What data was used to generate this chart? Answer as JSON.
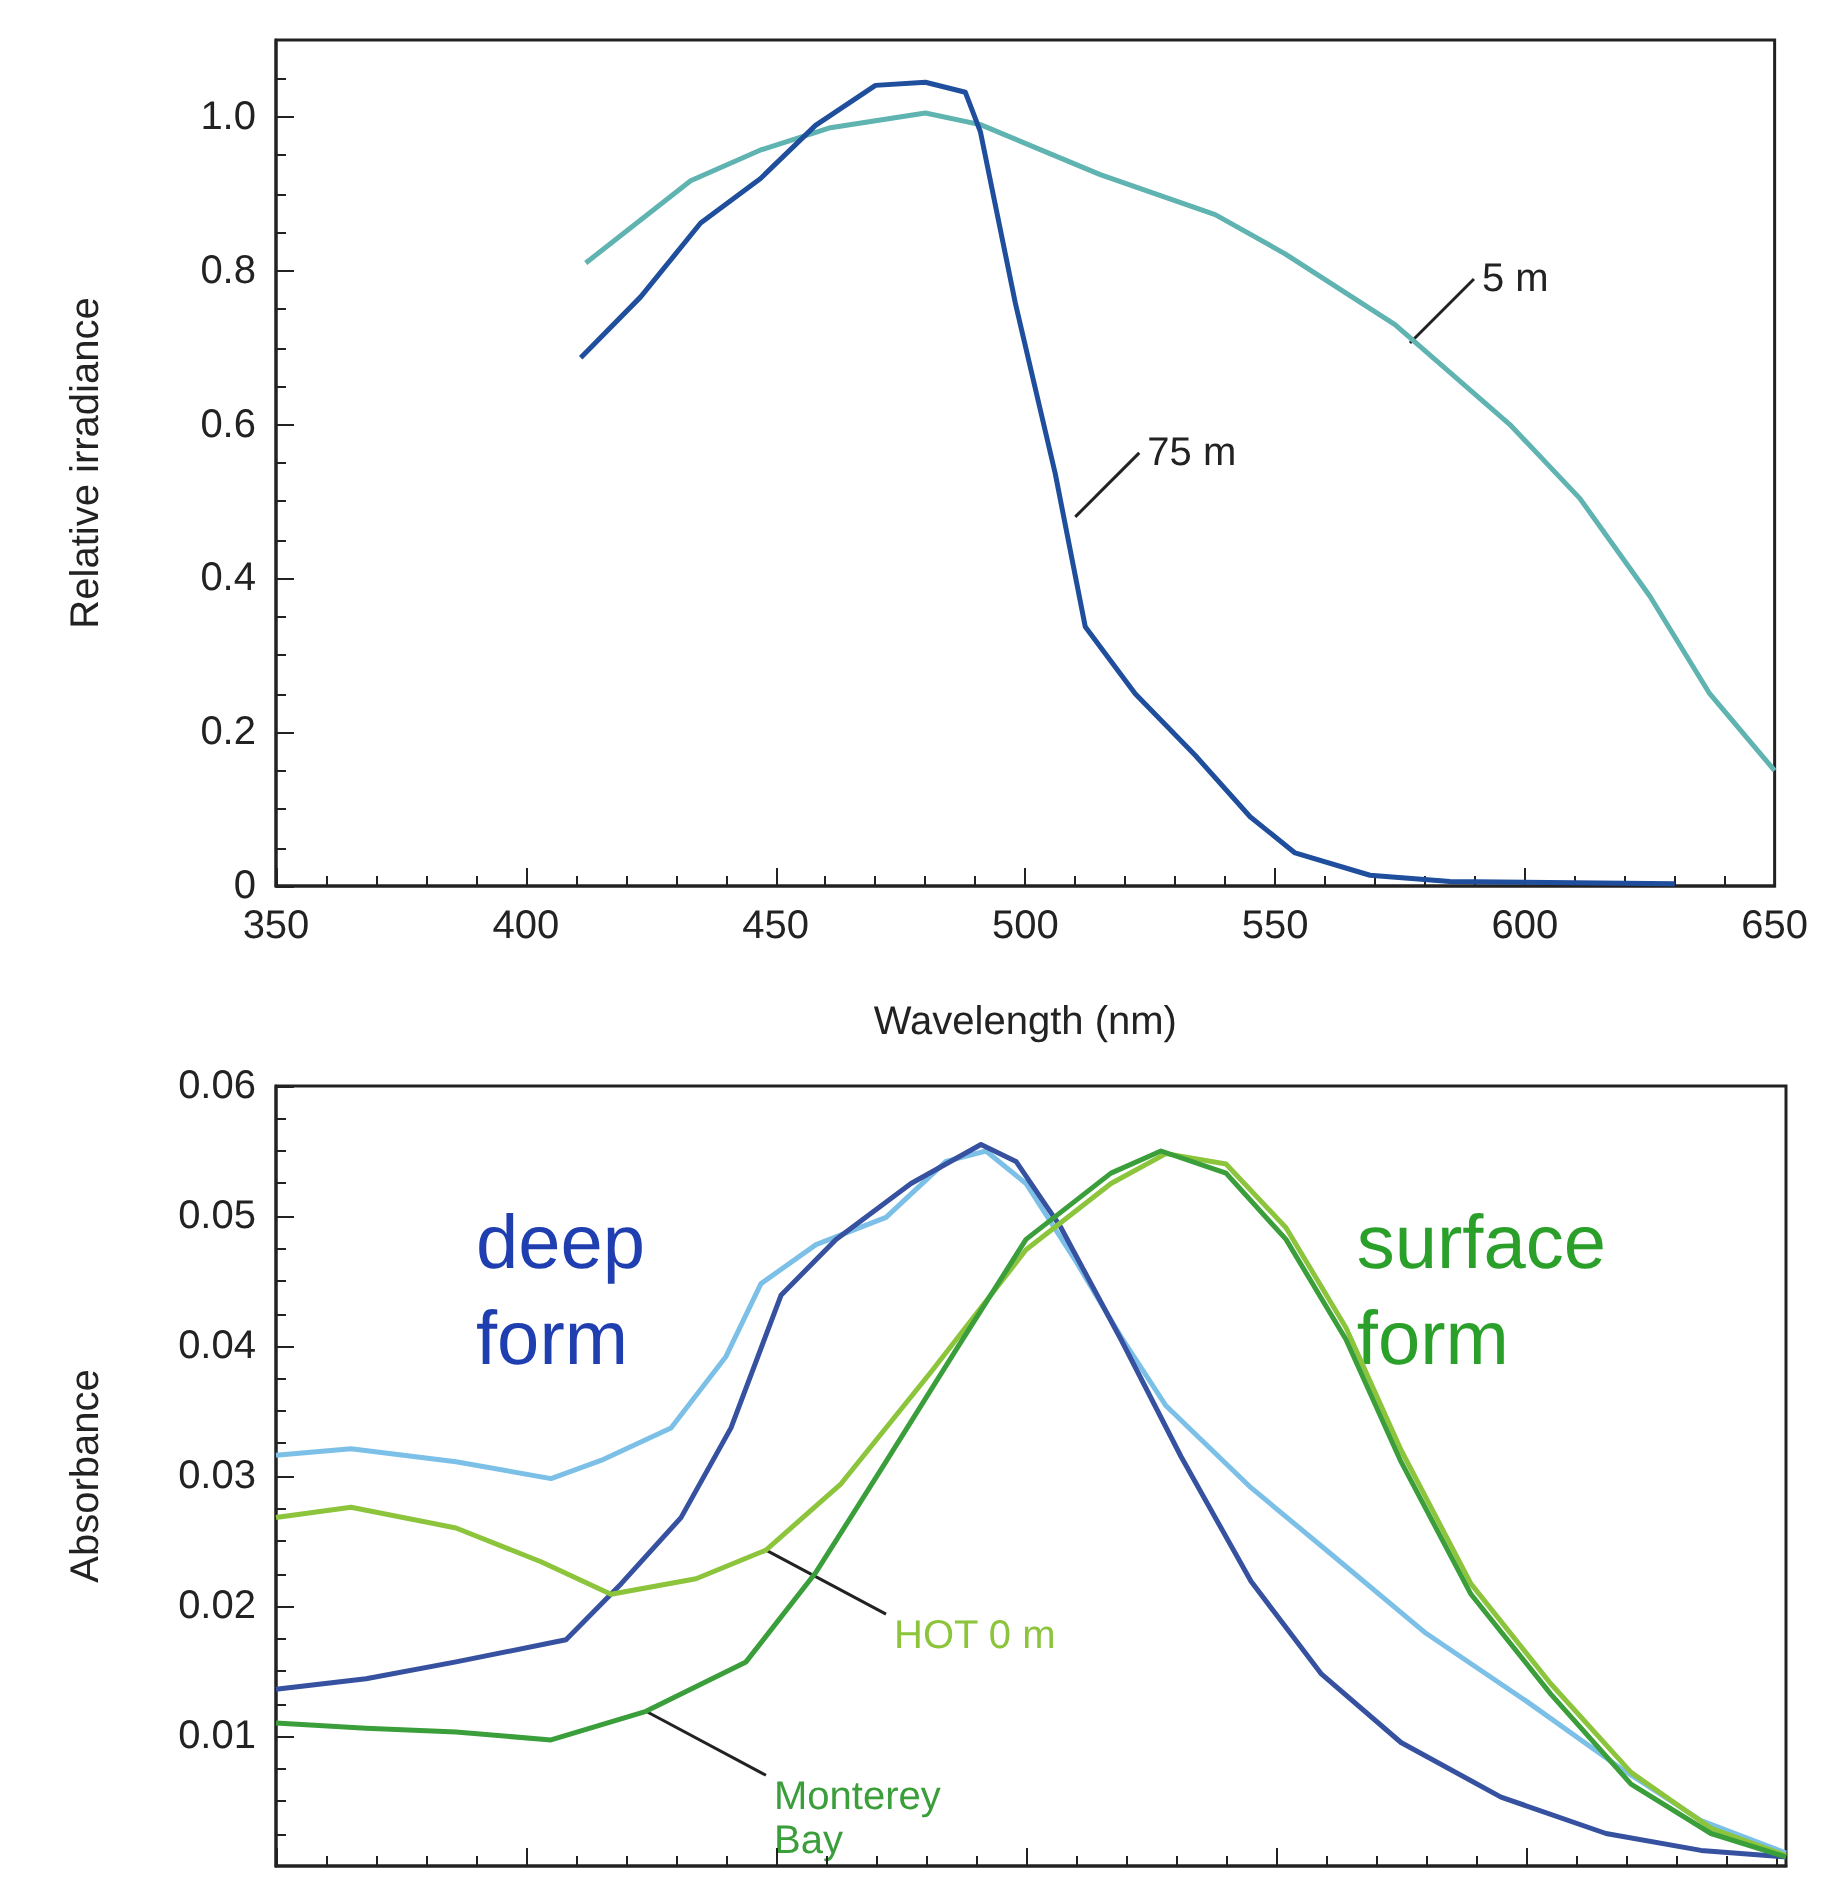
{
  "chart_data": [
    {
      "type": "line",
      "ylabel": "Relative irradiance",
      "xlabel": "Wavelength (nm)",
      "xlim": [
        350,
        650
      ],
      "xticks": [
        350,
        400,
        450,
        500,
        550,
        600,
        650
      ],
      "ylim": [
        0,
        1.1
      ],
      "yticks": [
        0,
        0.2,
        0.4,
        0.6,
        0.8,
        {
          "value": 1,
          "label": "1.0"
        }
      ],
      "grid": false,
      "legend": false,
      "marker": "none",
      "line_style": "solid",
      "series": [
        {
          "color": "#5fb3b0",
          "x": [
            412,
            433,
            447,
            461,
            480,
            491,
            515,
            538,
            552,
            574,
            597,
            611,
            625,
            637,
            650
          ],
          "values": [
            0.81,
            0.917,
            0.957,
            0.986,
            1.005,
            0.99,
            0.925,
            0.873,
            0.822,
            0.73,
            0.6,
            0.504,
            0.377,
            0.25,
            0.15
          ]
        },
        {
          "color": "#1f4e9c",
          "x": [
            411,
            423,
            435,
            447,
            458,
            470,
            480,
            488,
            491,
            498,
            506,
            512,
            522,
            534,
            545,
            554,
            569,
            585,
            630
          ],
          "values": [
            0.687,
            0.766,
            0.862,
            0.92,
            0.989,
            1.041,
            1.045,
            1.032,
            0.981,
            0.758,
            0.536,
            0.337,
            0.25,
            0.17,
            0.09,
            0.043,
            0.014,
            0.006,
            0.003
          ]
        }
      ],
      "annotations": [
        {
          "text": "5 m",
          "x": 577,
          "y": 0.706
        },
        {
          "text": "75 m",
          "x": 510,
          "y": 0.48
        }
      ]
    },
    {
      "type": "line",
      "ylabel": "Absorbance",
      "xlim": [
        350,
        652
      ],
      "xticks": [
        350,
        400,
        450,
        500,
        550,
        600,
        650
      ],
      "ylim": [
        0,
        0.06
      ],
      "yticks": [
        0.01,
        0.02,
        0.03,
        0.04,
        0.05,
        0.06
      ],
      "tick_labels": "y",
      "grid": false,
      "legend": false,
      "marker": "none",
      "line_style": "solid",
      "series": [
        {
          "color": "#7cc0e8",
          "x": [
            350,
            365,
            386,
            405,
            415,
            429,
            440,
            447,
            458,
            472,
            484,
            492,
            500,
            510,
            519,
            528,
            545,
            561,
            580,
            600,
            619,
            635,
            652
          ],
          "values": [
            0.0316,
            0.0321,
            0.0311,
            0.0298,
            0.0312,
            0.0337,
            0.0392,
            0.0448,
            0.0478,
            0.0499,
            0.0542,
            0.055,
            0.0525,
            0.0465,
            0.0407,
            0.0354,
            0.0291,
            0.024,
            0.0179,
            0.0127,
            0.0075,
            0.0035,
            0.001
          ]
        },
        {
          "color": "#35519f",
          "x": [
            350,
            368,
            386,
            408,
            419,
            431,
            441,
            451,
            462,
            477,
            491,
            498,
            507,
            519,
            531,
            545,
            559,
            575,
            595,
            616,
            635,
            652
          ],
          "values": [
            0.0136,
            0.0144,
            0.0157,
            0.0174,
            0.0217,
            0.0268,
            0.0337,
            0.0439,
            0.0482,
            0.0525,
            0.0555,
            0.0542,
            0.0491,
            0.0405,
            0.0315,
            0.0219,
            0.0148,
            0.0095,
            0.0053,
            0.0025,
            0.0012,
            0.0007
          ]
        },
        {
          "name": "HOT 0 m",
          "color": "#8cc43c",
          "x": [
            350,
            365,
            386,
            403,
            417,
            434,
            448,
            463,
            481,
            500,
            517,
            528,
            540,
            552,
            564,
            575,
            589,
            605,
            621,
            637,
            652
          ],
          "values": [
            0.0268,
            0.0276,
            0.026,
            0.0234,
            0.0209,
            0.0221,
            0.0243,
            0.0294,
            0.038,
            0.0474,
            0.0525,
            0.0548,
            0.054,
            0.0491,
            0.0414,
            0.032,
            0.0217,
            0.014,
            0.0072,
            0.0029,
            0.0008
          ]
        },
        {
          "name": "Monterey Bay",
          "color": "#3a9e3a",
          "x": [
            350,
            368,
            386,
            405,
            424,
            444,
            458,
            472,
            486,
            500,
            517,
            527,
            540,
            552,
            564,
            575,
            589,
            605,
            621,
            637,
            652
          ],
          "values": [
            0.011,
            0.0106,
            0.0103,
            0.0097,
            0.0119,
            0.0157,
            0.0226,
            0.0311,
            0.0397,
            0.0482,
            0.0533,
            0.055,
            0.0533,
            0.0482,
            0.0405,
            0.0311,
            0.0209,
            0.0132,
            0.0063,
            0.0025,
            0.0007
          ]
        }
      ],
      "annotations": [
        "deep\nform",
        "surface\nform"
      ]
    }
  ]
}
